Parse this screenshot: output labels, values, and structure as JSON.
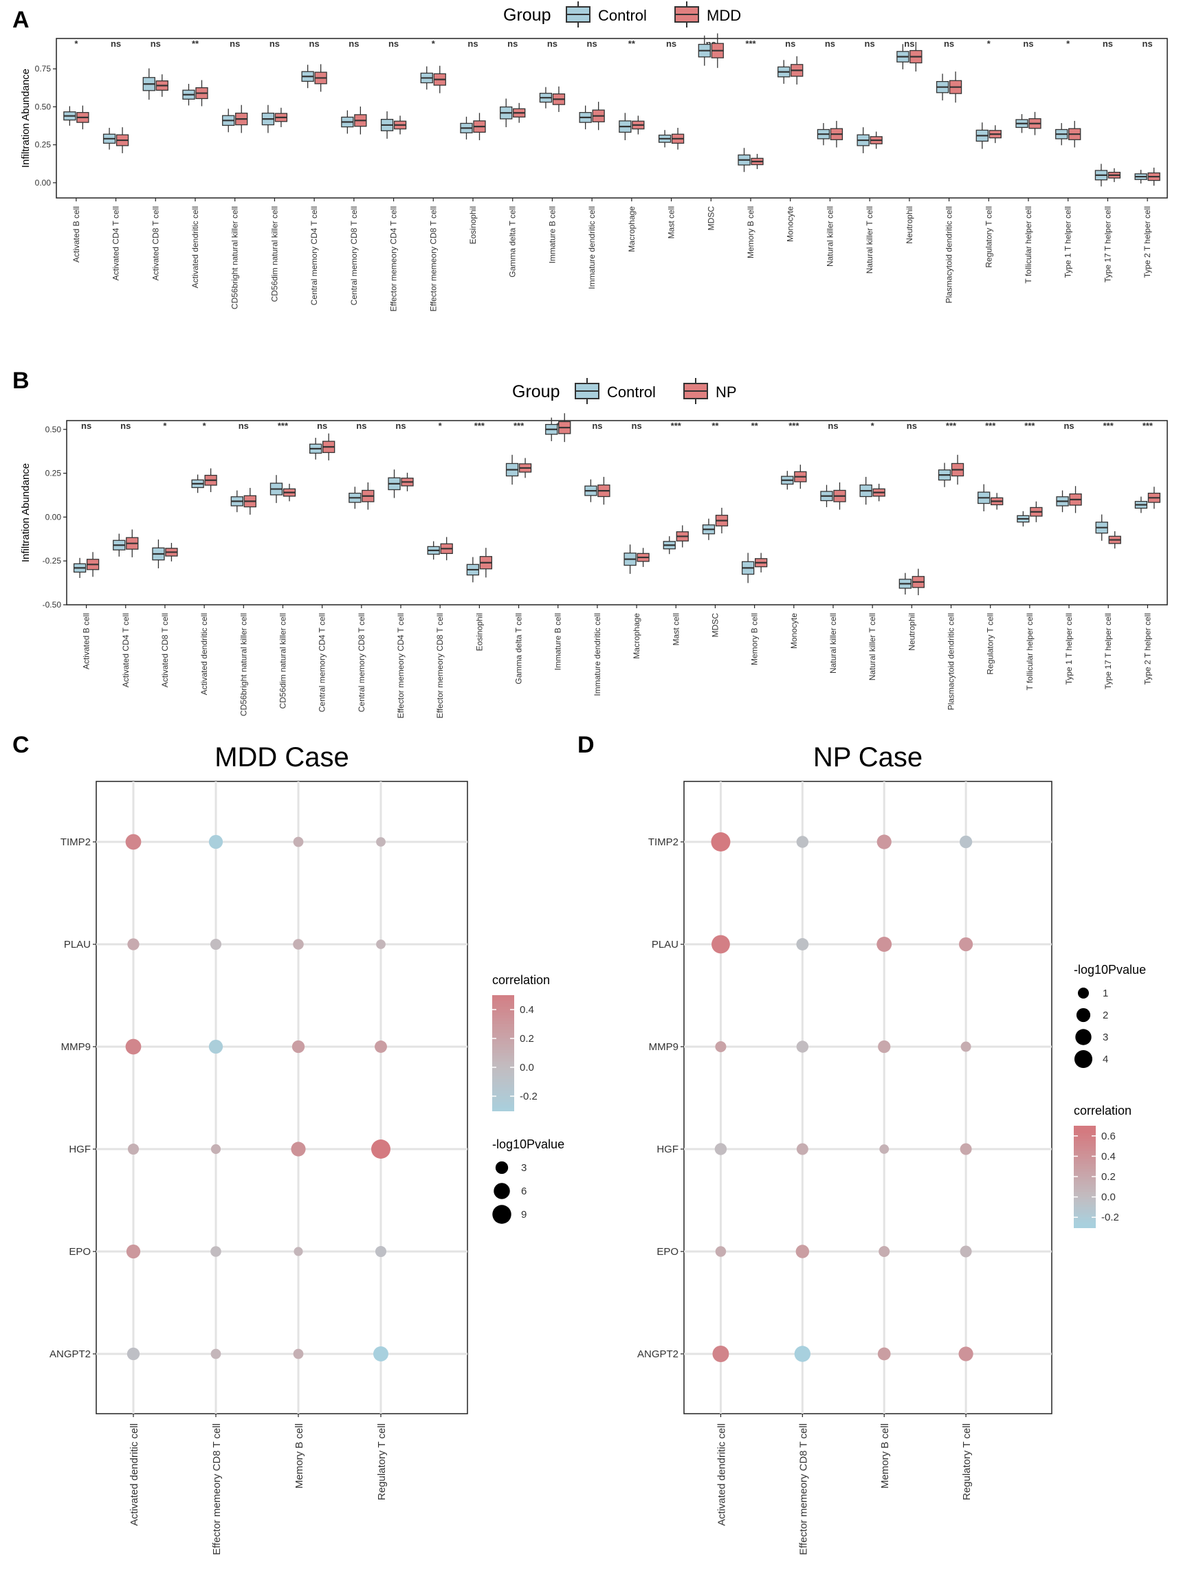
{
  "cells": [
    "Activated B cell",
    "Activated CD4 T cell",
    "Activated CD8 T cell",
    "Activated dendritic cell",
    "CD56bright natural killer cell",
    "CD56dim natural killer cell",
    "Central memory CD4 T cell",
    "Central memory CD8 T cell",
    "Effector memeory CD4 T cell",
    "Effector memeory CD8 T cell",
    "Eosinophil",
    "Gamma delta T cell",
    "Immature  B cell",
    "Immature dendritic cell",
    "Macrophage",
    "Mast cell",
    "MDSC",
    "Memory B cell",
    "Monocyte",
    "Natural killer cell",
    "Natural killer T cell",
    "Neutrophil",
    "Plasmacytoid dendritic cell",
    "Regulatory T cell",
    "T follicular helper cell",
    "Type 1 T helper cell",
    "Type 17 T helper cell",
    "Type 2 T helper cell"
  ],
  "colors": {
    "control": "#a9cfdc",
    "case": "#e08080",
    "grid": "#e3e3e3",
    "text": "#333333"
  },
  "chart_data": [
    {
      "panel": "A",
      "type": "box",
      "legend_title": "Group",
      "legend_labels": [
        "Control",
        "MDD"
      ],
      "ylabel": "Infiltration Abundance",
      "ylim": [
        -0.1,
        0.95
      ],
      "yticks": [
        0,
        0.25,
        0.5,
        0.75
      ],
      "ytick_labels": [
        "0.00",
        "0.25",
        "0.50",
        "0.75"
      ],
      "significance": [
        "*",
        "ns",
        "ns",
        "**",
        "ns",
        "ns",
        "ns",
        "ns",
        "ns",
        "*",
        "ns",
        "ns",
        "ns",
        "ns",
        "**",
        "ns",
        "ns",
        "***",
        "ns",
        "ns",
        "ns",
        "ns",
        "ns",
        "*",
        "ns",
        "*",
        "ns",
        "ns"
      ],
      "series": [
        {
          "name": "Control",
          "medians": [
            0.44,
            0.29,
            0.65,
            0.58,
            0.41,
            0.42,
            0.7,
            0.4,
            0.38,
            0.69,
            0.36,
            0.46,
            0.56,
            0.43,
            0.37,
            0.29,
            0.87,
            0.15,
            0.73,
            0.32,
            0.28,
            0.83,
            0.63,
            0.31,
            0.39,
            0.32,
            0.05,
            0.04
          ]
        },
        {
          "name": "MDD",
          "medians": [
            0.43,
            0.28,
            0.64,
            0.59,
            0.42,
            0.43,
            0.69,
            0.41,
            0.38,
            0.68,
            0.37,
            0.46,
            0.55,
            0.44,
            0.38,
            0.29,
            0.87,
            0.14,
            0.74,
            0.32,
            0.28,
            0.83,
            0.63,
            0.32,
            0.39,
            0.32,
            0.05,
            0.04
          ]
        }
      ]
    },
    {
      "panel": "B",
      "type": "box",
      "legend_title": "Group",
      "legend_labels": [
        "Control",
        "NP"
      ],
      "ylabel": "Infiltration Abundance",
      "ylim": [
        -0.5,
        0.55
      ],
      "yticks": [
        -0.5,
        -0.25,
        0,
        0.25,
        0.5
      ],
      "ytick_labels": [
        "-0.50",
        "-0.25",
        "0.00",
        "0.25",
        "0.50"
      ],
      "significance": [
        "ns",
        "ns",
        "*",
        "*",
        "ns",
        "***",
        "ns",
        "ns",
        "ns",
        "*",
        "***",
        "***",
        "*",
        "ns",
        "ns",
        "***",
        "**",
        "**",
        "***",
        "ns",
        "*",
        "ns",
        "***",
        "***",
        "***",
        "ns",
        "***",
        "***"
      ],
      "series": [
        {
          "name": "Control",
          "medians": [
            -0.29,
            -0.16,
            -0.21,
            0.19,
            0.09,
            0.16,
            0.39,
            0.11,
            0.19,
            -0.19,
            -0.3,
            0.27,
            0.5,
            0.15,
            -0.24,
            -0.16,
            -0.07,
            -0.29,
            0.21,
            0.12,
            0.15,
            -0.38,
            0.24,
            0.11,
            -0.01,
            0.09,
            -0.06,
            0.07
          ]
        },
        {
          "name": "NP",
          "medians": [
            -0.27,
            -0.15,
            -0.2,
            0.21,
            0.09,
            0.14,
            0.4,
            0.12,
            0.2,
            -0.18,
            -0.26,
            0.28,
            0.51,
            0.15,
            -0.23,
            -0.11,
            -0.02,
            -0.26,
            0.23,
            0.12,
            0.14,
            -0.37,
            0.27,
            0.09,
            0.03,
            0.1,
            -0.13,
            0.11
          ]
        }
      ]
    },
    {
      "panel": "C",
      "type": "dot",
      "title": "MDD Case",
      "genes": [
        "TIMP2",
        "PLAU",
        "MMP9",
        "HGF",
        "EPO",
        "ANGPT2"
      ],
      "cell_types": [
        "Activated dendritic cell",
        "Effector memeory CD8 T cell",
        "Memory B cell",
        "Regulatory T cell"
      ],
      "correlation": [
        [
          0.45,
          -0.3,
          0.1,
          0.05
        ],
        [
          0.15,
          0.0,
          0.1,
          0.05
        ],
        [
          0.45,
          -0.28,
          0.25,
          0.25
        ],
        [
          0.1,
          0.1,
          0.35,
          0.55
        ],
        [
          0.3,
          0.0,
          0.05,
          -0.05
        ],
        [
          -0.05,
          0.05,
          0.1,
          -0.32
        ]
      ],
      "neglog10p": [
        [
          5.5,
          4.0,
          1.5,
          1.2
        ],
        [
          2.5,
          2.0,
          1.8,
          1.2
        ],
        [
          5.5,
          4.0,
          3.0,
          2.8
        ],
        [
          2.0,
          1.3,
          4.5,
          9.5
        ],
        [
          4.0,
          1.8,
          1.0,
          2.0
        ],
        [
          3.0,
          1.5,
          1.5,
          5.0
        ]
      ],
      "legend_color_title": "correlation",
      "legend_color_ticks": [
        "0.4",
        "0.2",
        "0.0",
        "-0.2"
      ],
      "legend_size_title": "-log10Pvalue",
      "legend_size_ticks": [
        "3",
        "6",
        "9"
      ]
    },
    {
      "panel": "D",
      "type": "dot",
      "title": "NP Case",
      "genes": [
        "TIMP2",
        "PLAU",
        "MMP9",
        "HGF",
        "EPO",
        "ANGPT2"
      ],
      "cell_types": [
        "Activated dendritic cell",
        "Effector memeory CD8 T cell",
        "Memory B cell",
        "Regulatory T cell"
      ],
      "correlation": [
        [
          0.65,
          -0.05,
          0.35,
          -0.1
        ],
        [
          0.6,
          -0.05,
          0.4,
          0.35
        ],
        [
          0.25,
          0.0,
          0.2,
          0.15
        ],
        [
          0.0,
          0.15,
          0.1,
          0.2
        ],
        [
          0.15,
          0.3,
          0.15,
          0.05
        ],
        [
          0.55,
          -0.28,
          0.3,
          0.4
        ]
      ],
      "neglog10p": [
        [
          4.8,
          1.3,
          2.3,
          1.5
        ],
        [
          4.3,
          1.4,
          2.5,
          2.0
        ],
        [
          1.0,
          1.3,
          1.5,
          0.8
        ],
        [
          1.3,
          1.2,
          0.6,
          1.2
        ],
        [
          0.9,
          1.8,
          1.0,
          1.2
        ],
        [
          3.2,
          3.0,
          1.6,
          2.3
        ]
      ],
      "legend_color_title": "correlation",
      "legend_color_ticks": [
        "0.6",
        "0.4",
        "0.2",
        "0.0",
        "-0.2"
      ],
      "legend_size_title": "-log10Pvalue",
      "legend_size_ticks": [
        "1",
        "2",
        "3",
        "4"
      ]
    }
  ],
  "panel_labels": [
    "A",
    "B",
    "C",
    "D"
  ]
}
